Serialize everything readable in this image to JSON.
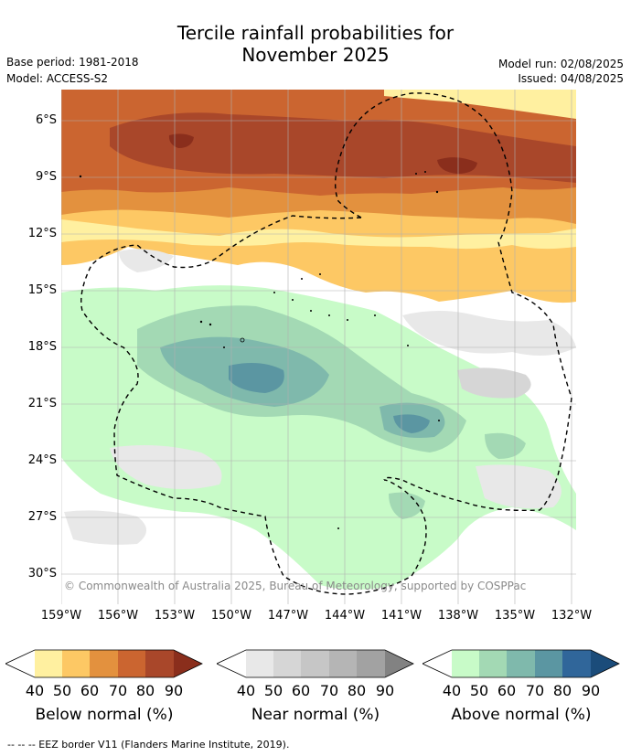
{
  "title": {
    "line1": "Tercile rainfall probabilities for",
    "line2": "November 2025"
  },
  "meta": {
    "base_period": "Base period: 1981-2018",
    "model": "Model: ACCESS-S2",
    "model_run": "Model run: 02/08/2025",
    "issued": "Issued: 04/08/2025"
  },
  "map": {
    "lat_labels": [
      "6°S",
      "9°S",
      "12°S",
      "15°S",
      "18°S",
      "21°S",
      "24°S",
      "27°S",
      "30°S"
    ],
    "lon_labels": [
      "159°W",
      "156°W",
      "153°W",
      "150°W",
      "147°W",
      "144°W",
      "141°W",
      "138°W",
      "135°W",
      "132°W"
    ],
    "copyright": "© Commonwealth of Australia 2025, Bureau of Meteorology, supported by COSPPac"
  },
  "colorbars": [
    {
      "label": "Below normal (%)",
      "ticks": [
        "40",
        "50",
        "60",
        "70",
        "80",
        "90"
      ],
      "colors": [
        "#ffffff",
        "#fff0a0",
        "#fdc864",
        "#e3913e",
        "#cb6530",
        "#a9472a",
        "#8a2e1c"
      ]
    },
    {
      "label": "Near normal (%)",
      "ticks": [
        "40",
        "50",
        "60",
        "70",
        "80",
        "90"
      ],
      "colors": [
        "#ffffff",
        "#e8e8e8",
        "#d6d6d6",
        "#c6c6c6",
        "#b5b5b5",
        "#a2a2a2",
        "#828282"
      ]
    },
    {
      "label": "Above normal (%)",
      "ticks": [
        "40",
        "50",
        "60",
        "70",
        "80",
        "90"
      ],
      "colors": [
        "#ffffff",
        "#c8fbc8",
        "#a3d9b4",
        "#7fb9ac",
        "#5b96a2",
        "#30669a",
        "#1b4c7a"
      ]
    }
  ],
  "footer": "--  --  -- EEZ border V11 (Flanders Marine Institute, 2019)."
}
